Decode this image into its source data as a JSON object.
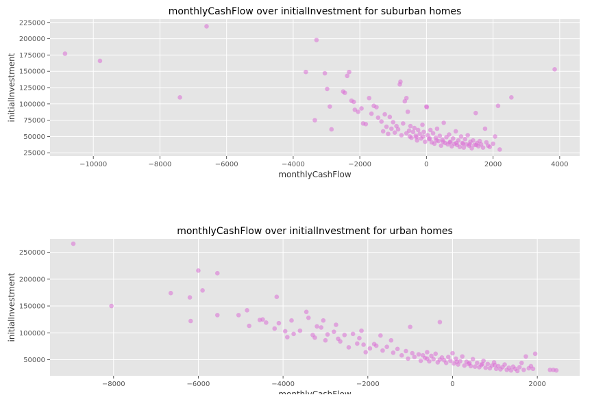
{
  "chart_data": [
    {
      "type": "scatter",
      "title": "monthlyCashFlow over initialInvestment for suburban homes",
      "xlabel": "monthlyCashFlow",
      "ylabel": "initialInvestment",
      "xlim": [
        -11300,
        4600
      ],
      "ylim": [
        20000,
        230000
      ],
      "xticks": [
        -10000,
        -8000,
        -6000,
        -4000,
        -2000,
        0,
        2000,
        4000
      ],
      "xtick_labels": [
        "−10000",
        "−8000",
        "−6000",
        "−4000",
        "−2000",
        "0",
        "2000",
        "4000"
      ],
      "yticks": [
        25000,
        50000,
        75000,
        100000,
        125000,
        150000,
        175000,
        200000,
        225000
      ],
      "ytick_labels": [
        "25000",
        "50000",
        "75000",
        "100000",
        "125000",
        "150000",
        "175000",
        "200000",
        "225000"
      ],
      "grid": true,
      "color": "#da70d6",
      "points": [
        [
          -10850,
          177000
        ],
        [
          -9800,
          166000
        ],
        [
          -7400,
          110000
        ],
        [
          -6600,
          219000
        ],
        [
          -3620,
          149000
        ],
        [
          -3350,
          75000
        ],
        [
          -3300,
          198000
        ],
        [
          -3050,
          147000
        ],
        [
          -2980,
          123000
        ],
        [
          -2900,
          96000
        ],
        [
          -2850,
          61000
        ],
        [
          -2500,
          119000
        ],
        [
          -2450,
          117000
        ],
        [
          -2380,
          143000
        ],
        [
          -2320,
          149000
        ],
        [
          -2250,
          105000
        ],
        [
          -2180,
          103000
        ],
        [
          -2150,
          91000
        ],
        [
          -2050,
          88000
        ],
        [
          -1950,
          93000
        ],
        [
          -1900,
          70000
        ],
        [
          -1820,
          69000
        ],
        [
          -1720,
          109000
        ],
        [
          -1650,
          85000
        ],
        [
          -1580,
          97000
        ],
        [
          -1500,
          95000
        ],
        [
          -1450,
          79000
        ],
        [
          -1350,
          73000
        ],
        [
          -1300,
          58000
        ],
        [
          -1250,
          84000
        ],
        [
          -1200,
          65000
        ],
        [
          -1150,
          54000
        ],
        [
          -1100,
          80000
        ],
        [
          -1050,
          62000
        ],
        [
          -1000,
          72000
        ],
        [
          -950,
          56000
        ],
        [
          -900,
          66000
        ],
        [
          -850,
          61000
        ],
        [
          -800,
          130000
        ],
        [
          -780,
          134000
        ],
        [
          -750,
          52000
        ],
        [
          -700,
          70000
        ],
        [
          -650,
          104000
        ],
        [
          -600,
          109000
        ],
        [
          -560,
          88000
        ],
        [
          -520,
          59000
        ],
        [
          -480,
          66000
        ],
        [
          -450,
          48000
        ],
        [
          -400,
          57000
        ],
        [
          -360,
          63000
        ],
        [
          -320,
          51000
        ],
        [
          -280,
          44000
        ],
        [
          -250,
          60000
        ],
        [
          -200,
          54000
        ],
        [
          -160,
          47000
        ],
        [
          -120,
          68000
        ],
        [
          -80,
          57000
        ],
        [
          -40,
          42000
        ],
        [
          0,
          96000
        ],
        [
          10,
          95000
        ],
        [
          40,
          52000
        ],
        [
          80,
          46000
        ],
        [
          120,
          60000
        ],
        [
          160,
          41000
        ],
        [
          200,
          55000
        ],
        [
          240,
          39000
        ],
        [
          280,
          48000
        ],
        [
          320,
          62000
        ],
        [
          360,
          43000
        ],
        [
          400,
          51000
        ],
        [
          440,
          36000
        ],
        [
          480,
          45000
        ],
        [
          520,
          71000
        ],
        [
          560,
          40000
        ],
        [
          600,
          49000
        ],
        [
          640,
          38000
        ],
        [
          680,
          53000
        ],
        [
          720,
          42000
        ],
        [
          760,
          35000
        ],
        [
          800,
          47000
        ],
        [
          840,
          39000
        ],
        [
          880,
          58000
        ],
        [
          920,
          37000
        ],
        [
          960,
          44000
        ],
        [
          1000,
          34000
        ],
        [
          1040,
          50000
        ],
        [
          1080,
          40000
        ],
        [
          1120,
          33000
        ],
        [
          1160,
          46000
        ],
        [
          1200,
          38000
        ],
        [
          1240,
          52000
        ],
        [
          1280,
          36000
        ],
        [
          1320,
          42000
        ],
        [
          1360,
          32000
        ],
        [
          1400,
          44000
        ],
        [
          1440,
          37000
        ],
        [
          1480,
          86000
        ],
        [
          1520,
          40000
        ],
        [
          1560,
          35000
        ],
        [
          1600,
          43000
        ],
        [
          1640,
          38000
        ],
        [
          1700,
          33000
        ],
        [
          1760,
          62000
        ],
        [
          1800,
          41000
        ],
        [
          1850,
          36000
        ],
        [
          1900,
          34000
        ],
        [
          2000,
          39000
        ],
        [
          2060,
          50000
        ],
        [
          2150,
          97000
        ],
        [
          2200,
          30000
        ],
        [
          2550,
          110000
        ],
        [
          3850,
          153000
        ],
        [
          -600,
          55000
        ],
        [
          -500,
          50000
        ],
        [
          -300,
          49000
        ],
        [
          -100,
          50000
        ],
        [
          100,
          47000
        ],
        [
          300,
          44000
        ],
        [
          500,
          42000
        ],
        [
          700,
          41000
        ],
        [
          900,
          40000
        ],
        [
          1100,
          39000
        ],
        [
          1300,
          38000
        ],
        [
          1500,
          37000
        ]
      ]
    },
    {
      "type": "scatter",
      "title": "monthlyCashFlow over initialInvestment for urban homes",
      "xlabel": "monthlyCashFlow",
      "ylabel": "initialInvestment",
      "xlim": [
        -9500,
        3000
      ],
      "ylim": [
        20000,
        275000
      ],
      "xticks": [
        -8000,
        -6000,
        -4000,
        -2000,
        0,
        2000
      ],
      "xtick_labels": [
        "−8000",
        "−6000",
        "−4000",
        "−2000",
        "0",
        "2000"
      ],
      "yticks": [
        50000,
        100000,
        150000,
        200000,
        250000
      ],
      "ytick_labels": [
        "50000",
        "100000",
        "150000",
        "200000",
        "250000"
      ],
      "grid": true,
      "color": "#da70d6",
      "points": [
        [
          -8950,
          266000
        ],
        [
          -8050,
          150000
        ],
        [
          -6650,
          174000
        ],
        [
          -6200,
          166000
        ],
        [
          -6180,
          122000
        ],
        [
          -6000,
          216000
        ],
        [
          -5900,
          179000
        ],
        [
          -5550,
          211000
        ],
        [
          -5550,
          133000
        ],
        [
          -5050,
          133000
        ],
        [
          -4850,
          142000
        ],
        [
          -4800,
          113000
        ],
        [
          -4550,
          124000
        ],
        [
          -4480,
          125000
        ],
        [
          -4400,
          119000
        ],
        [
          -4200,
          108000
        ],
        [
          -4150,
          167000
        ],
        [
          -4100,
          118000
        ],
        [
          -3950,
          103000
        ],
        [
          -3900,
          92000
        ],
        [
          -3800,
          123000
        ],
        [
          -3750,
          98000
        ],
        [
          -3600,
          104000
        ],
        [
          -3450,
          139000
        ],
        [
          -3400,
          128000
        ],
        [
          -3300,
          96000
        ],
        [
          -3250,
          91000
        ],
        [
          -3200,
          112000
        ],
        [
          -3100,
          110000
        ],
        [
          -3050,
          123000
        ],
        [
          -3000,
          86000
        ],
        [
          -2950,
          97000
        ],
        [
          -2800,
          102000
        ],
        [
          -2750,
          115000
        ],
        [
          -2700,
          89000
        ],
        [
          -2650,
          84000
        ],
        [
          -2550,
          96000
        ],
        [
          -2450,
          73000
        ],
        [
          -2350,
          98000
        ],
        [
          -2250,
          80000
        ],
        [
          -2200,
          90000
        ],
        [
          -2150,
          104000
        ],
        [
          -2100,
          78000
        ],
        [
          -2050,
          64000
        ],
        [
          -1950,
          71000
        ],
        [
          -1850,
          79000
        ],
        [
          -1800,
          76000
        ],
        [
          -1700,
          95000
        ],
        [
          -1650,
          67000
        ],
        [
          -1550,
          74000
        ],
        [
          -1450,
          86000
        ],
        [
          -1400,
          63000
        ],
        [
          -1300,
          70000
        ],
        [
          -1200,
          58000
        ],
        [
          -1100,
          66000
        ],
        [
          -1050,
          52000
        ],
        [
          -1000,
          111000
        ],
        [
          -950,
          62000
        ],
        [
          -900,
          55000
        ],
        [
          -800,
          60000
        ],
        [
          -750,
          48000
        ],
        [
          -700,
          58000
        ],
        [
          -650,
          53000
        ],
        [
          -600,
          64000
        ],
        [
          -550,
          47000
        ],
        [
          -500,
          57000
        ],
        [
          -450,
          51000
        ],
        [
          -400,
          61000
        ],
        [
          -350,
          45000
        ],
        [
          -300,
          120000
        ],
        [
          -250,
          54000
        ],
        [
          -200,
          49000
        ],
        [
          -150,
          44000
        ],
        [
          -100,
          55000
        ],
        [
          -50,
          48000
        ],
        [
          0,
          62000
        ],
        [
          30,
          43000
        ],
        [
          80,
          52000
        ],
        [
          130,
          41000
        ],
        [
          180,
          47000
        ],
        [
          230,
          56000
        ],
        [
          280,
          39000
        ],
        [
          330,
          46000
        ],
        [
          380,
          42000
        ],
        [
          430,
          38000
        ],
        [
          480,
          51000
        ],
        [
          530,
          37000
        ],
        [
          580,
          44000
        ],
        [
          630,
          36000
        ],
        [
          680,
          40000
        ],
        [
          730,
          48000
        ],
        [
          780,
          35000
        ],
        [
          830,
          42000
        ],
        [
          880,
          34000
        ],
        [
          930,
          39000
        ],
        [
          980,
          45000
        ],
        [
          1030,
          33000
        ],
        [
          1080,
          38000
        ],
        [
          1130,
          32000
        ],
        [
          1180,
          36000
        ],
        [
          1230,
          41000
        ],
        [
          1280,
          31000
        ],
        [
          1330,
          35000
        ],
        [
          1380,
          30000
        ],
        [
          1430,
          37000
        ],
        [
          1480,
          33000
        ],
        [
          1530,
          29000
        ],
        [
          1580,
          36000
        ],
        [
          1630,
          44000
        ],
        [
          1680,
          31000
        ],
        [
          1730,
          56000
        ],
        [
          1800,
          34000
        ],
        [
          1850,
          38000
        ],
        [
          1900,
          33000
        ],
        [
          1950,
          61000
        ],
        [
          2300,
          31000
        ],
        [
          2380,
          31000
        ],
        [
          2450,
          30000
        ],
        [
          -600,
          52000
        ],
        [
          -300,
          50000
        ],
        [
          100,
          46000
        ],
        [
          400,
          44000
        ],
        [
          700,
          42000
        ],
        [
          1000,
          40000
        ]
      ]
    }
  ]
}
